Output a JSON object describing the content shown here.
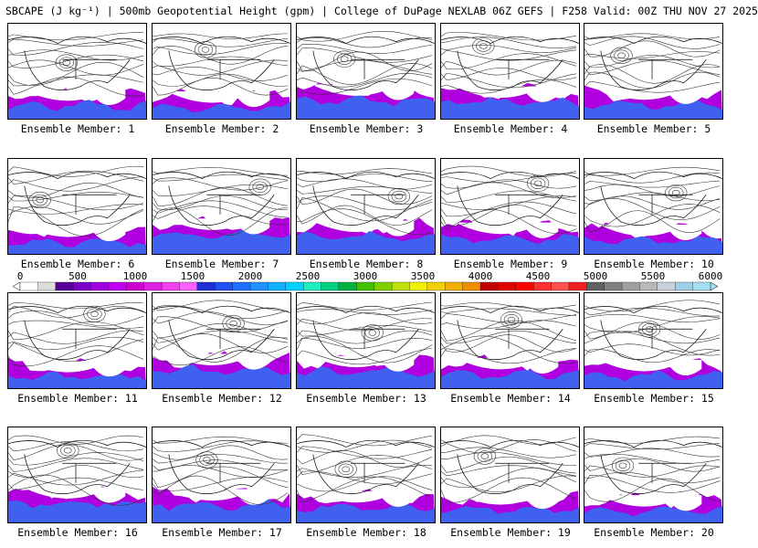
{
  "header": {
    "title": "SBCAPE (J kg⁻¹) | 500mb Geopotential Height (gpm) | College of DuPage NEXLAB 06Z GEFS | F258 Valid: 00Z THU NOV 27 2025"
  },
  "members": [
    {
      "label": "Ensemble Member: 1"
    },
    {
      "label": "Ensemble Member: 2"
    },
    {
      "label": "Ensemble Member: 3"
    },
    {
      "label": "Ensemble Member: 4"
    },
    {
      "label": "Ensemble Member: 5"
    },
    {
      "label": "Ensemble Member: 6"
    },
    {
      "label": "Ensemble Member: 7"
    },
    {
      "label": "Ensemble Member: 8"
    },
    {
      "label": "Ensemble Member: 9"
    },
    {
      "label": "Ensemble Member: 10"
    },
    {
      "label": "Ensemble Member: 11"
    },
    {
      "label": "Ensemble Member: 12"
    },
    {
      "label": "Ensemble Member: 13"
    },
    {
      "label": "Ensemble Member: 14"
    },
    {
      "label": "Ensemble Member: 15"
    },
    {
      "label": "Ensemble Member: 16"
    },
    {
      "label": "Ensemble Member: 17"
    },
    {
      "label": "Ensemble Member: 18"
    },
    {
      "label": "Ensemble Member: 19"
    },
    {
      "label": "Ensemble Member: 20"
    }
  ],
  "colorbar": {
    "labels": [
      "0",
      "500",
      "1000",
      "1500",
      "2000",
      "2500",
      "3000",
      "3500",
      "4000",
      "4500",
      "5000",
      "5500",
      "6000"
    ],
    "colors": [
      "#ffffff",
      "#dcdcdc",
      "#5a009a",
      "#7a00c8",
      "#a000e0",
      "#c000f0",
      "#d000d0",
      "#e020e0",
      "#f040f0",
      "#ff60ff",
      "#2030d0",
      "#2050f0",
      "#2070ff",
      "#2090ff",
      "#10b0ff",
      "#00d0ff",
      "#20f0c0",
      "#00d080",
      "#00b040",
      "#40c000",
      "#80d000",
      "#c0e000",
      "#f0f000",
      "#f0d000",
      "#f0b000",
      "#f09000",
      "#c00000",
      "#e00000",
      "#ff0000",
      "#ff3030",
      "#ff5050",
      "#f02020",
      "#606060",
      "#808080",
      "#a0a0a0",
      "#b8b8b8",
      "#c8d0d8",
      "#a0d0e8",
      "#a0e0f0"
    ]
  }
}
